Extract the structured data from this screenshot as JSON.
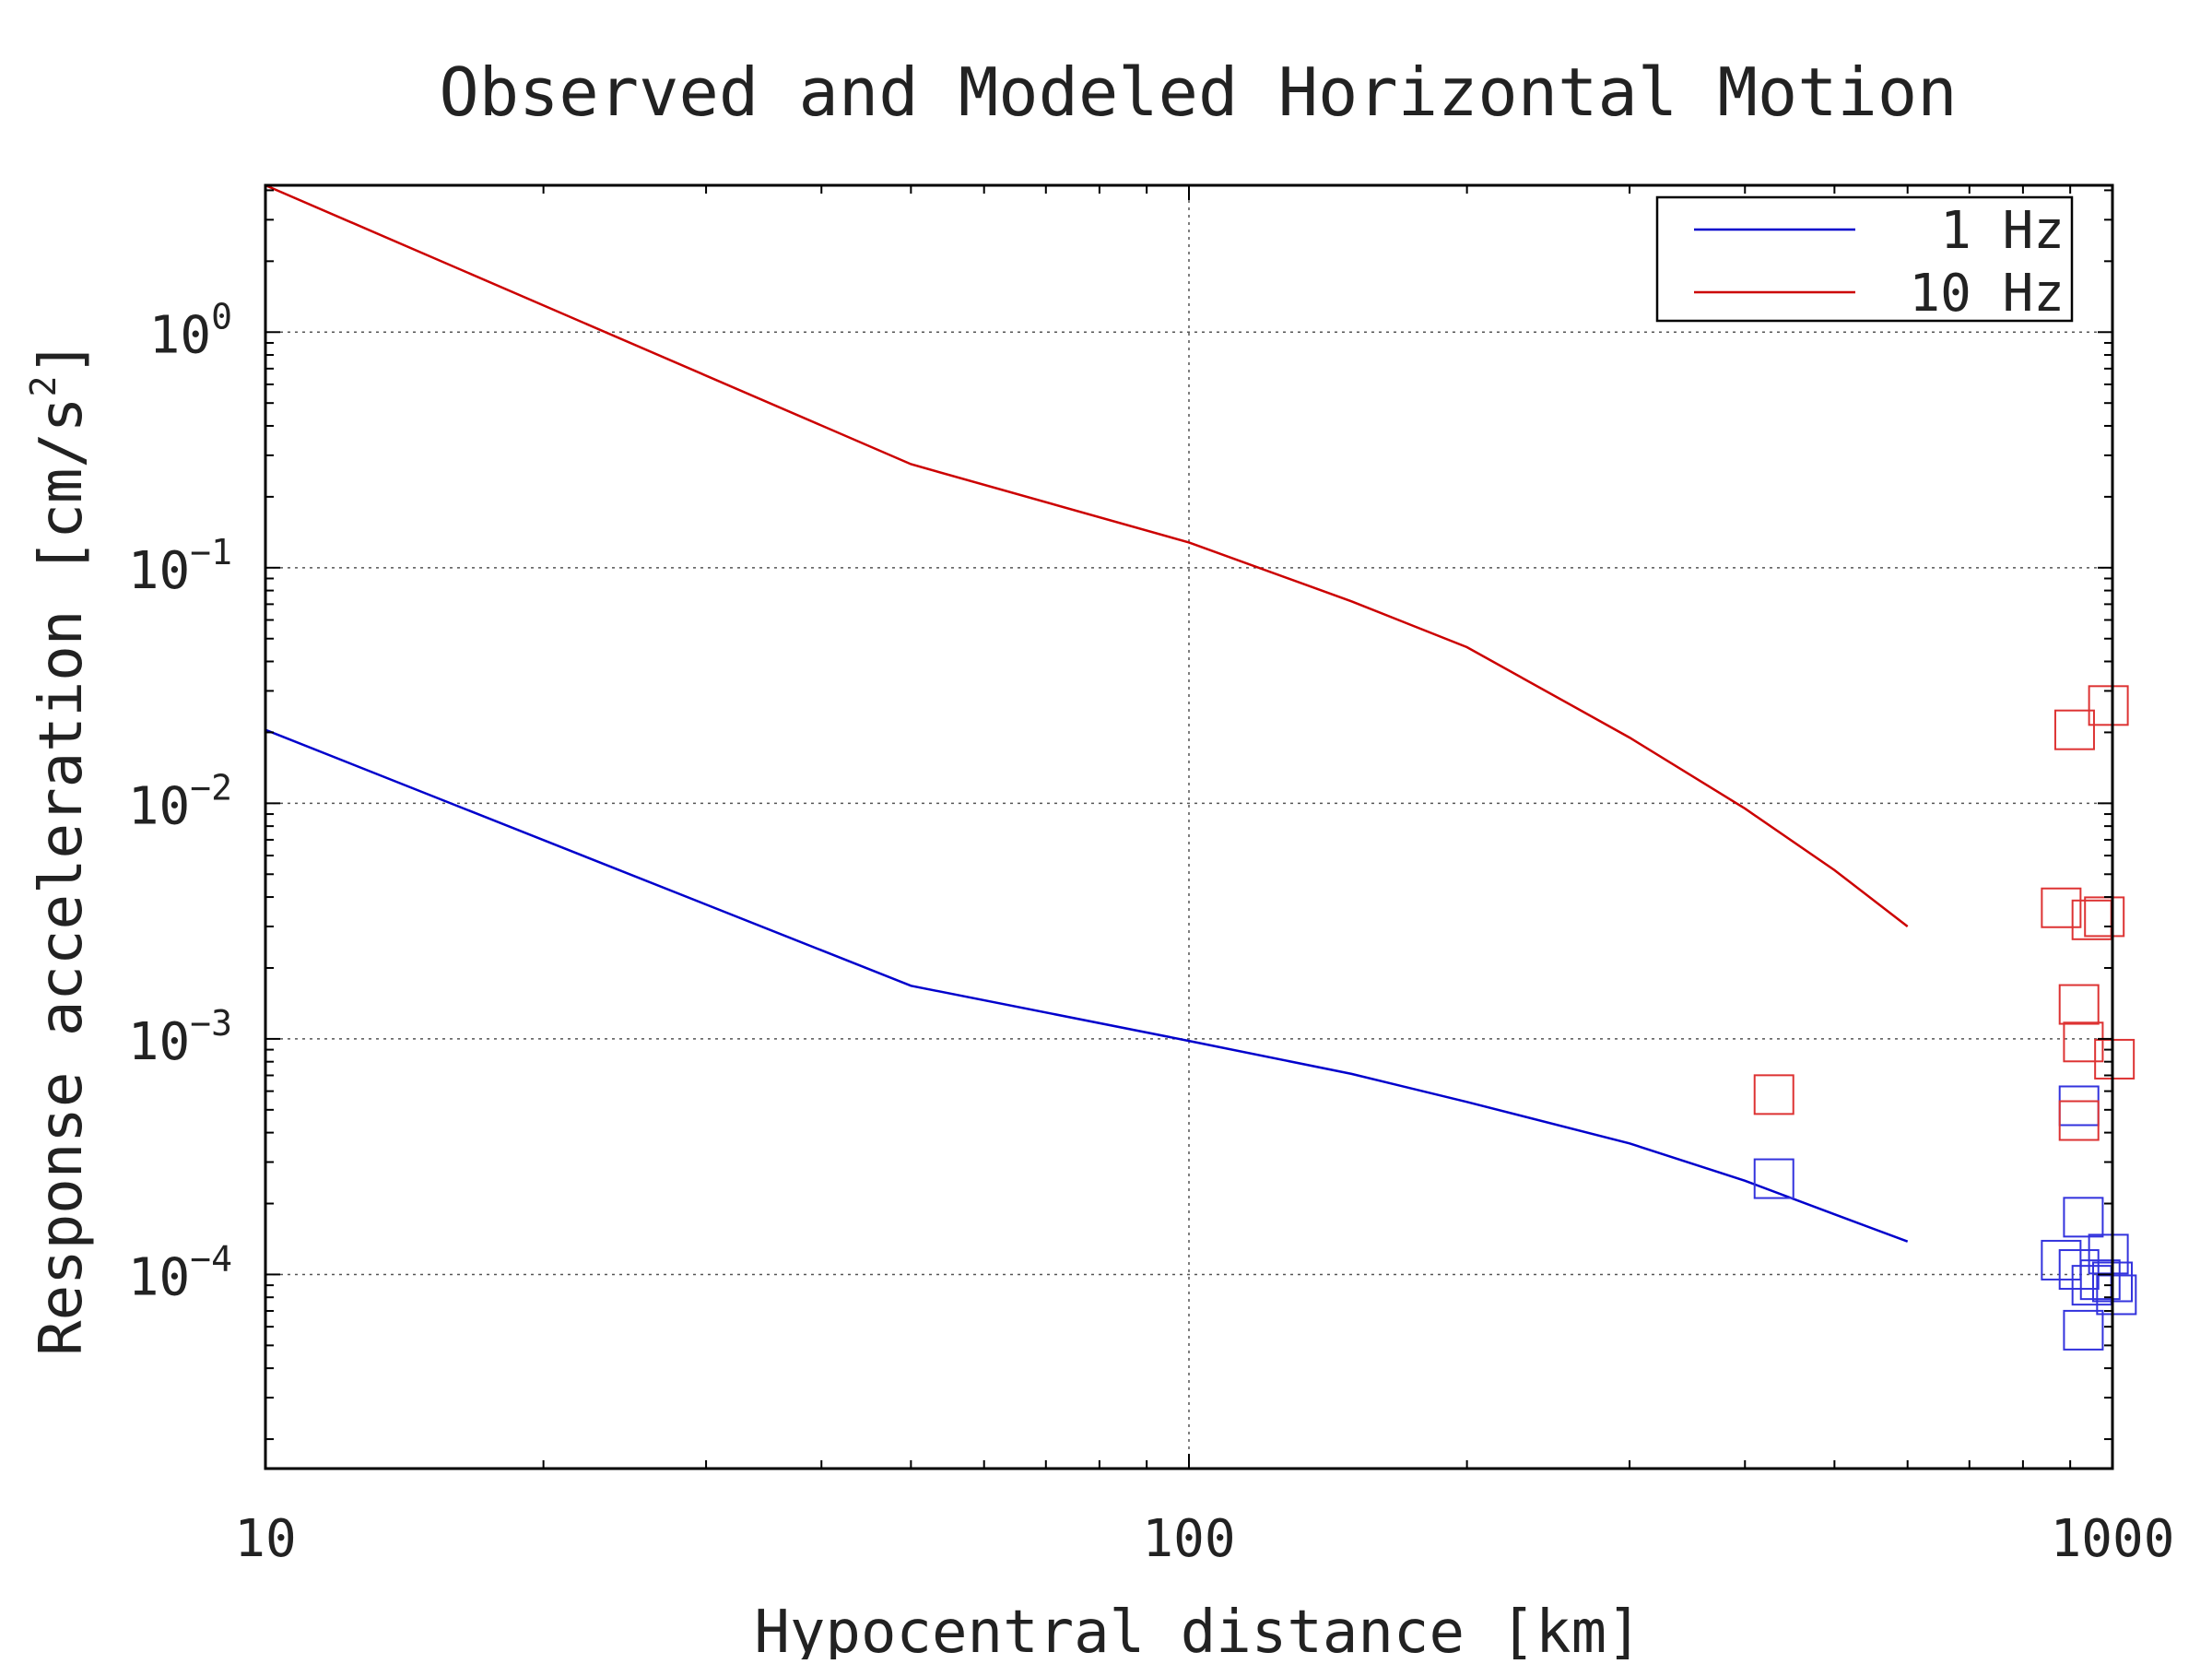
{
  "chart_data": {
    "type": "line",
    "title": "Observed and Modeled Horizontal Motion",
    "xlabel": "Hypocentral distance [km]",
    "ylabel": {
      "main": "Response acceleration [cm/s",
      "exponent": "2",
      "close": "]"
    },
    "x_scale": "log",
    "y_scale": "log",
    "xlim": [
      10,
      1000
    ],
    "ylim": [
      1.5e-05,
      4.2
    ],
    "x_ticks": [
      {
        "value": 10,
        "label": "10"
      },
      {
        "value": 100,
        "label": "100"
      },
      {
        "value": 1000,
        "label": "1000"
      }
    ],
    "y_ticks": [
      {
        "value": 1,
        "base": "10",
        "exp": "0"
      },
      {
        "value": 0.1,
        "base": "10",
        "exp": "−1"
      },
      {
        "value": 0.01,
        "base": "10",
        "exp": "−2"
      },
      {
        "value": 0.001,
        "base": "10",
        "exp": "−3"
      },
      {
        "value": 0.0001,
        "base": "10",
        "exp": "−4"
      }
    ],
    "grid": true,
    "legend_position": "top-right",
    "series": [
      {
        "name": "1 Hz",
        "color": "#0000cc",
        "kind": "line",
        "x": [
          10,
          50,
          100,
          150,
          200,
          300,
          400,
          500,
          600
        ],
        "y": [
          0.0205,
          0.00168,
          0.00098,
          0.00071,
          0.00054,
          0.00036,
          0.00025,
          0.00018,
          0.000138
        ]
      },
      {
        "name": "10 Hz",
        "color": "#cc0000",
        "kind": "line",
        "x": [
          10,
          50,
          100,
          150,
          200,
          300,
          400,
          500,
          600
        ],
        "y": [
          4.2,
          0.275,
          0.128,
          0.072,
          0.046,
          0.019,
          0.0095,
          0.0052,
          0.003
        ]
      }
    ],
    "observed": [
      {
        "color": "#3333dd",
        "x": [
          430,
          930,
          880,
          920,
          950,
          970,
          990,
          1000,
          1010,
          930,
          920
        ],
        "y": [
          0.000255,
          0.000175,
          0.000115,
          0.000105,
          9e-05,
          9.5e-05,
          0.000122,
          9.3e-05,
          8.2e-05,
          5.8e-05,
          0.00052
        ]
      },
      {
        "color": "#dd3333",
        "x": [
          430,
          910,
          880,
          950,
          980,
          920,
          930,
          1005,
          920,
          990
        ],
        "y": [
          0.00058,
          0.0205,
          0.0036,
          0.0032,
          0.0033,
          0.0014,
          0.00097,
          0.00082,
          0.00045,
          0.026
        ]
      }
    ]
  }
}
